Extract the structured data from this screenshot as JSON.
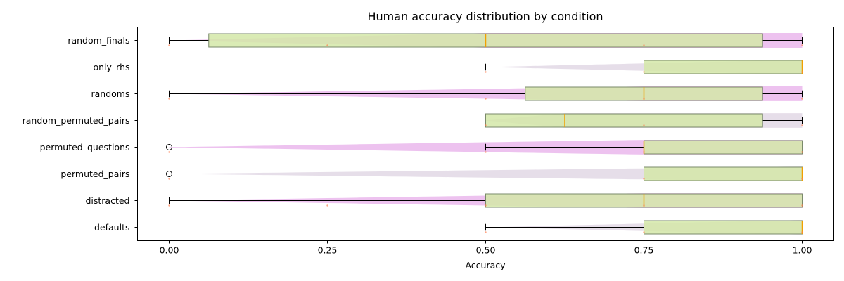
{
  "chart_data": {
    "type": "boxplot",
    "orientation": "horizontal",
    "title": "Human accuracy distribution by condition",
    "xlabel": "Accuracy",
    "ylabel": "",
    "xlim": [
      -0.05,
      1.05
    ],
    "xticks": [
      0.0,
      0.25,
      0.5,
      0.75,
      1.0
    ],
    "xtick_labels": [
      "0.00",
      "0.25",
      "0.50",
      "0.75",
      "1.00"
    ],
    "grid": false,
    "colors": {
      "box_fill": "#d4e8a8",
      "box_edge": "#7a8a6a",
      "median": "#f0a000",
      "violin_fill": "#e6a8e8",
      "violin_fill_alt": "#dcd0e0",
      "whisker": "#000000",
      "jitter_point": "#ff7f50"
    },
    "categories": [
      "random_finals",
      "only_rhs",
      "randoms",
      "random_permuted_pairs",
      "permuted_questions",
      "permuted_pairs",
      "distracted",
      "defaults"
    ],
    "boxes": [
      {
        "label": "random_finals",
        "whislo": 0.0,
        "q1": 0.0625,
        "med": 0.5,
        "q3": 0.9375,
        "whishi": 1.0,
        "fliers": [],
        "points": [
          0.0,
          0.25,
          0.75,
          1.0
        ]
      },
      {
        "label": "only_rhs",
        "whislo": 0.5,
        "q1": 0.75,
        "med": 1.0,
        "q3": 1.0,
        "whishi": 1.0,
        "fliers": [],
        "points": [
          0.5,
          0.75,
          1.0
        ]
      },
      {
        "label": "randoms",
        "whislo": 0.0,
        "q1": 0.5625,
        "med": 0.75,
        "q3": 0.9375,
        "whishi": 1.0,
        "fliers": [],
        "points": [
          0.0,
          0.5,
          0.75,
          1.0
        ]
      },
      {
        "label": "random_permuted_pairs",
        "whislo": 0.5,
        "q1": 0.5,
        "med": 0.625,
        "q3": 0.9375,
        "whishi": 1.0,
        "fliers": [],
        "points": [
          0.5,
          0.75,
          1.0
        ]
      },
      {
        "label": "permuted_questions",
        "whislo": 0.5,
        "q1": 0.75,
        "med": 0.75,
        "q3": 1.0,
        "whishi": 1.0,
        "fliers": [
          0.0
        ],
        "points": [
          0.0,
          0.5,
          0.75,
          1.0
        ]
      },
      {
        "label": "permuted_pairs",
        "whislo": 0.75,
        "q1": 0.75,
        "med": 1.0,
        "q3": 1.0,
        "whishi": 1.0,
        "fliers": [
          0.0
        ],
        "points": [
          0.0,
          0.75,
          1.0
        ]
      },
      {
        "label": "distracted",
        "whislo": 0.0,
        "q1": 0.5,
        "med": 0.75,
        "q3": 1.0,
        "whishi": 1.0,
        "fliers": [],
        "points": [
          0.0,
          0.25,
          0.5,
          0.75,
          1.0
        ]
      },
      {
        "label": "defaults",
        "whislo": 0.5,
        "q1": 0.75,
        "med": 1.0,
        "q3": 1.0,
        "whishi": 1.0,
        "fliers": [],
        "points": [
          0.5,
          0.75,
          1.0
        ]
      }
    ]
  }
}
